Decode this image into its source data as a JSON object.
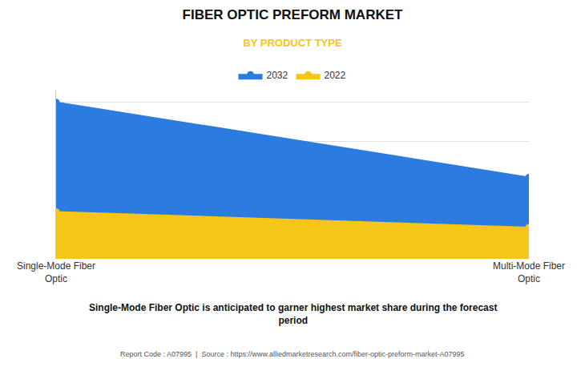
{
  "chart_data": {
    "type": "area",
    "title": "FIBER OPTIC PREFORM MARKET",
    "subtitle": "BY PRODUCT TYPE",
    "categories": [
      "Single-Mode Fiber\nOptic",
      "Multi-Mode Fiber\nOptic"
    ],
    "series": [
      {
        "name": "2022",
        "color": "#F5C518",
        "values": [
          0.3,
          0.2
        ]
      },
      {
        "name": "2032",
        "color": "#2B7BE0",
        "values": [
          1.0,
          0.52
        ]
      }
    ],
    "ylim": [
      0,
      1.08
    ],
    "yticks": [
      0,
      0.25,
      0.5,
      0.75,
      1
    ],
    "grid": true,
    "legend": "top",
    "tick_labels": "x",
    "marker": "circle",
    "annotation": "Single-Mode Fiber Optic is anticipated to garner highest market share during the forecast\nperiod",
    "footer": "Report Code : A07995  |  Source : https://www.alliedmarketresearch.com/fiber-optic-preform-market-A07995"
  }
}
